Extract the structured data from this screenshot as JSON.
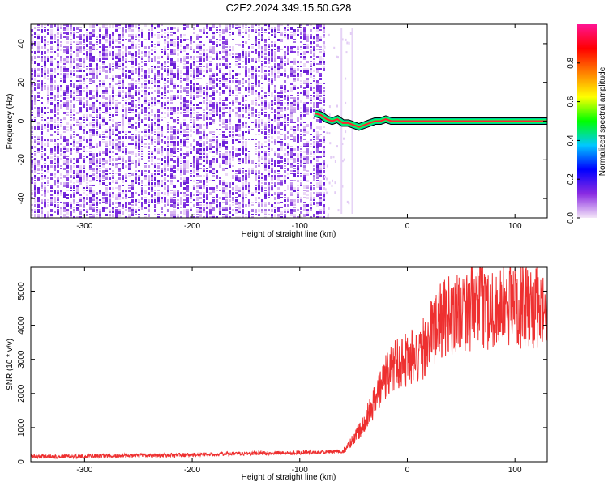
{
  "title": "C2E2.2024.349.15.50.G28",
  "chart_data": [
    {
      "type": "heatmap",
      "xlabel": "Height of straight line (km)",
      "ylabel": "Frequency (Hz)",
      "xlim": [
        -350,
        130
      ],
      "ylim": [
        -50,
        50
      ],
      "xticks": [
        -300,
        -200,
        -100,
        0,
        100
      ],
      "yticks": [
        -40,
        -20,
        0,
        20,
        40
      ],
      "noise_region_x": [
        -350,
        -78
      ],
      "signal_track": {
        "x": [
          -86,
          -80,
          -75,
          -70,
          -65,
          -60,
          -55,
          -50,
          -45,
          -40,
          -35,
          -30,
          -25,
          -20,
          -15,
          -10,
          -5,
          0,
          130
        ],
        "y": [
          4,
          3,
          1,
          0,
          1,
          -1,
          -1,
          -2,
          -3,
          -2,
          -1,
          0,
          0,
          1,
          0,
          0,
          0,
          0,
          0
        ]
      },
      "colorbar": {
        "label": "Normalized spectral amplitude",
        "ticks": [
          "0.0",
          "0.2",
          "0.4",
          "0.6",
          "0.8"
        ],
        "range": [
          0,
          1
        ],
        "colors": [
          "#f4e6f8",
          "#8a2be2",
          "#0000ff",
          "#00c8ff",
          "#00ff00",
          "#ffff00",
          "#ff8000",
          "#ff0000",
          "#ff1493"
        ]
      }
    },
    {
      "type": "line",
      "xlabel": "Height of straight line (km)",
      "ylabel": "SNR (10 * v/v)",
      "xlim": [
        -350,
        130
      ],
      "ylim": [
        0,
        5700
      ],
      "xticks": [
        -300,
        -200,
        -100,
        0,
        100
      ],
      "yticks": [
        0,
        1000,
        2000,
        3000,
        4000,
        5000
      ],
      "color": "#ee3030",
      "series": [
        {
          "x": [
            -350,
            -300,
            -250,
            -200,
            -150,
            -100,
            -75,
            -60,
            -55,
            -50,
            -45,
            -40,
            -35,
            -30,
            -25,
            -20,
            -15,
            -10,
            -5,
            0,
            5,
            10,
            15,
            20,
            30,
            40,
            50,
            60,
            70,
            80,
            90,
            100,
            110,
            120,
            130
          ],
          "values": [
            150,
            160,
            180,
            200,
            240,
            270,
            290,
            300,
            450,
            700,
            900,
            1200,
            1500,
            1800,
            2200,
            2500,
            2700,
            2900,
            3000,
            3000,
            3100,
            2900,
            3300,
            3700,
            4100,
            4300,
            4500,
            4500,
            4600,
            4500,
            4500,
            4700,
            4500,
            4500,
            4300
          ]
        }
      ]
    }
  ]
}
